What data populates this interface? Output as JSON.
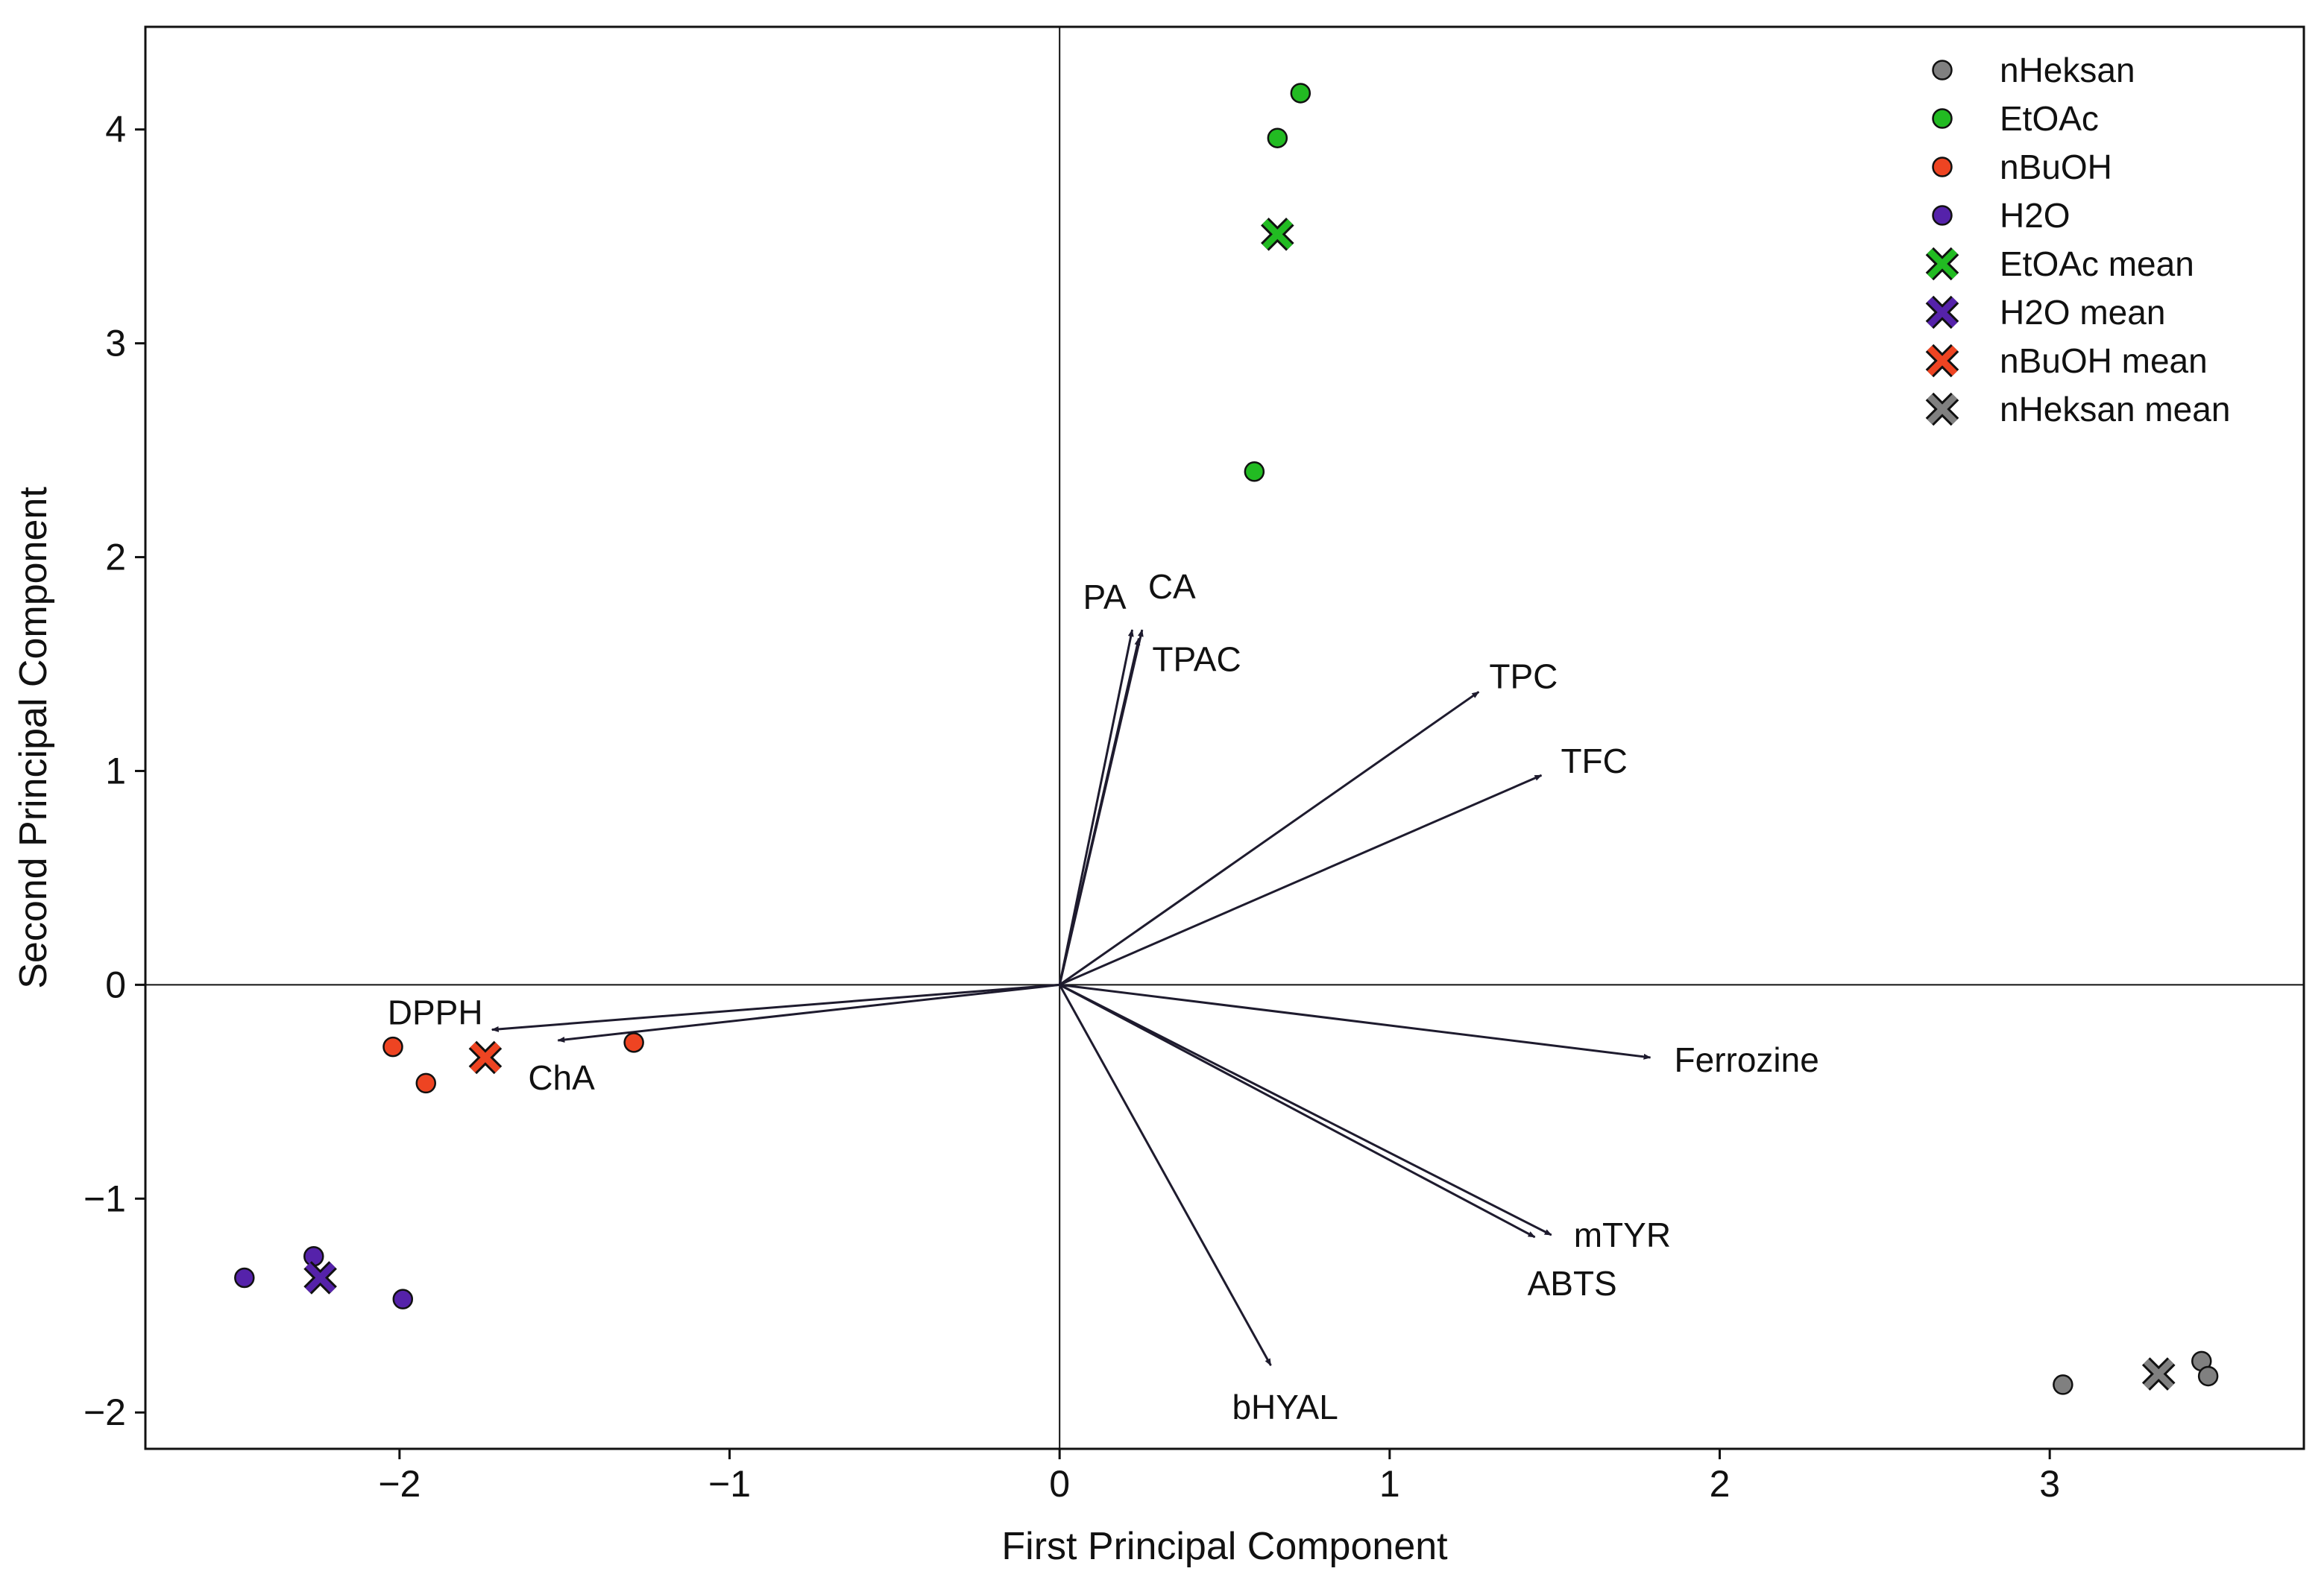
{
  "chart_data": {
    "type": "scatter",
    "title": "",
    "xlabel": "First Principal Component",
    "ylabel": "Second Principal Component",
    "xlim": [
      -2.77,
      3.77
    ],
    "ylim": [
      -2.17,
      4.48
    ],
    "xticks": [
      -2,
      -1,
      0,
      1,
      2,
      3
    ],
    "yticks": [
      -2,
      -1,
      0,
      1,
      2,
      3,
      4
    ],
    "xtick_labels": [
      "−2",
      "−1",
      "0",
      "1",
      "2",
      "3"
    ],
    "ytick_labels": [
      "−2",
      "−1",
      "0",
      "1",
      "2",
      "3",
      "4"
    ],
    "grid": false,
    "reference_lines": {
      "x": 0,
      "y": 0
    },
    "legend_position": "top-right",
    "series": [
      {
        "name": "nHeksan",
        "marker": "circle",
        "color": "#808080",
        "points": [
          [
            3.46,
            -1.76
          ],
          [
            3.48,
            -1.83
          ],
          [
            3.04,
            -1.87
          ]
        ]
      },
      {
        "name": "EtOAc",
        "marker": "circle",
        "color": "#22bb22",
        "points": [
          [
            0.73,
            4.17
          ],
          [
            0.66,
            3.96
          ],
          [
            0.59,
            2.4
          ]
        ]
      },
      {
        "name": "nBuOH",
        "marker": "circle",
        "color": "#ee4422",
        "points": [
          [
            -1.29,
            -0.27
          ],
          [
            -2.02,
            -0.29
          ],
          [
            -1.92,
            -0.46
          ]
        ]
      },
      {
        "name": "H2O",
        "marker": "circle",
        "color": "#5522aa",
        "points": [
          [
            -2.26,
            -1.27
          ],
          [
            -2.47,
            -1.37
          ],
          [
            -1.99,
            -1.47
          ]
        ]
      },
      {
        "name": "EtOAc mean",
        "marker": "x",
        "color": "#22bb22",
        "points": [
          [
            0.66,
            3.51
          ]
        ]
      },
      {
        "name": "H2O mean",
        "marker": "x",
        "color": "#5522aa",
        "points": [
          [
            -2.24,
            -1.37
          ]
        ]
      },
      {
        "name": "nBuOH mean",
        "marker": "x",
        "color": "#ee4422",
        "points": [
          [
            -1.74,
            -0.34
          ]
        ]
      },
      {
        "name": "nHeksan mean",
        "marker": "x",
        "color": "#808080",
        "points": [
          [
            3.33,
            -1.82
          ]
        ]
      }
    ],
    "loadings": [
      {
        "label": "PA",
        "x": 0.22,
        "y": 1.66
      },
      {
        "label": "CA",
        "x": 0.25,
        "y": 1.66
      },
      {
        "label": "TPAC",
        "x": 0.24,
        "y": 1.62
      },
      {
        "label": "TPC",
        "x": 1.27,
        "y": 1.37
      },
      {
        "label": "TFC",
        "x": 1.46,
        "y": 0.98
      },
      {
        "label": "DPPH",
        "x": -1.72,
        "y": -0.21
      },
      {
        "label": "ChA",
        "x": -1.52,
        "y": -0.26
      },
      {
        "label": "Ferrozine",
        "x": 1.79,
        "y": -0.34
      },
      {
        "label": "mTYR",
        "x": 1.49,
        "y": -1.17
      },
      {
        "label": "ABTS",
        "x": 1.44,
        "y": -1.18
      },
      {
        "label": "bHYAL",
        "x": 0.64,
        "y": -1.78
      }
    ],
    "colors": {
      "axis": "#111111",
      "arrow": "#1e1b2e",
      "marker_edge": "#111111"
    }
  }
}
